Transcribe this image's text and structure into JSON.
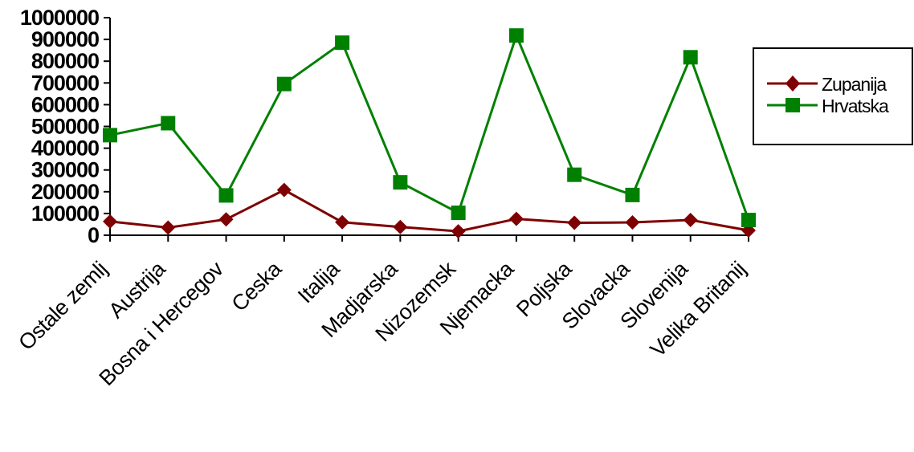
{
  "chart_data": {
    "type": "line",
    "categories": [
      "Ostale zemlj",
      "Austrija",
      "Bosna i Hercegov",
      "Ceska",
      "Italija",
      "Madjarska",
      "Nizozemsk",
      "Njemacka",
      "Poljska",
      "Slovacka",
      "Slovenija",
      "Velika Britanij"
    ],
    "series": [
      {
        "name": "Zupanija",
        "color": "#7f0000",
        "marker": "diamond",
        "values": [
          63000,
          35000,
          73000,
          208000,
          60000,
          38000,
          18000,
          75000,
          57000,
          59000,
          70000,
          22000
        ]
      },
      {
        "name": "Hrvatska",
        "color": "#008000",
        "marker": "square",
        "values": [
          460000,
          515000,
          183000,
          695000,
          885000,
          243000,
          103000,
          918000,
          278000,
          185000,
          818000,
          70000
        ]
      }
    ],
    "yticks": [
      "0",
      "100000",
      "200000",
      "300000",
      "400000",
      "500000",
      "600000",
      "700000",
      "800000",
      "900000",
      "1000000"
    ],
    "ylim": [
      0,
      1000000
    ],
    "legend": "right",
    "grid": false
  }
}
